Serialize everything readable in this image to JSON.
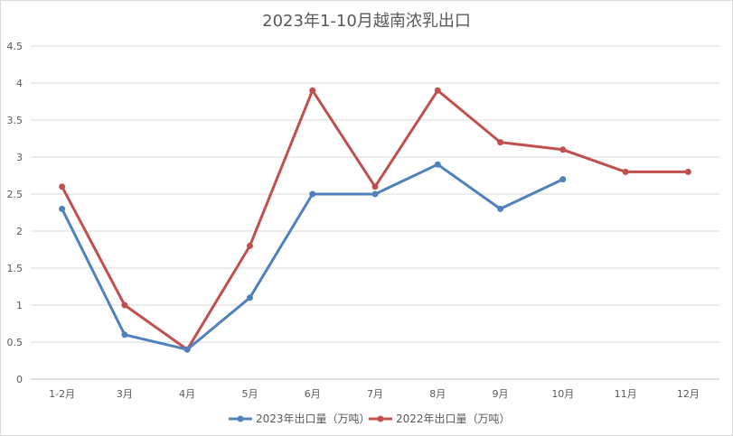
{
  "chart_data": {
    "type": "line",
    "title": "2023年1-10月越南浓乳出口",
    "categories": [
      "1-2月",
      "3月",
      "4月",
      "5月",
      "6月",
      "7月",
      "8月",
      "9月",
      "10月",
      "11月",
      "12月"
    ],
    "ylim": [
      0,
      4.5
    ],
    "yticks": [
      "0",
      "0.5",
      "1",
      "1.5",
      "2",
      "2.5",
      "3",
      "3.5",
      "4",
      "4.5"
    ],
    "grid": true,
    "legend_position": "bottom",
    "series": [
      {
        "name": "2023年出口量（万吨）",
        "color": "#4f81bd",
        "values": [
          2.3,
          0.6,
          0.4,
          1.1,
          2.5,
          2.5,
          2.9,
          2.3,
          2.7,
          null,
          null
        ]
      },
      {
        "name": "2022年出口量（万吨）",
        "color": "#c0504d",
        "values": [
          2.6,
          1.0,
          0.4,
          1.8,
          3.9,
          2.6,
          3.9,
          3.2,
          3.1,
          2.8,
          2.8
        ]
      }
    ]
  }
}
